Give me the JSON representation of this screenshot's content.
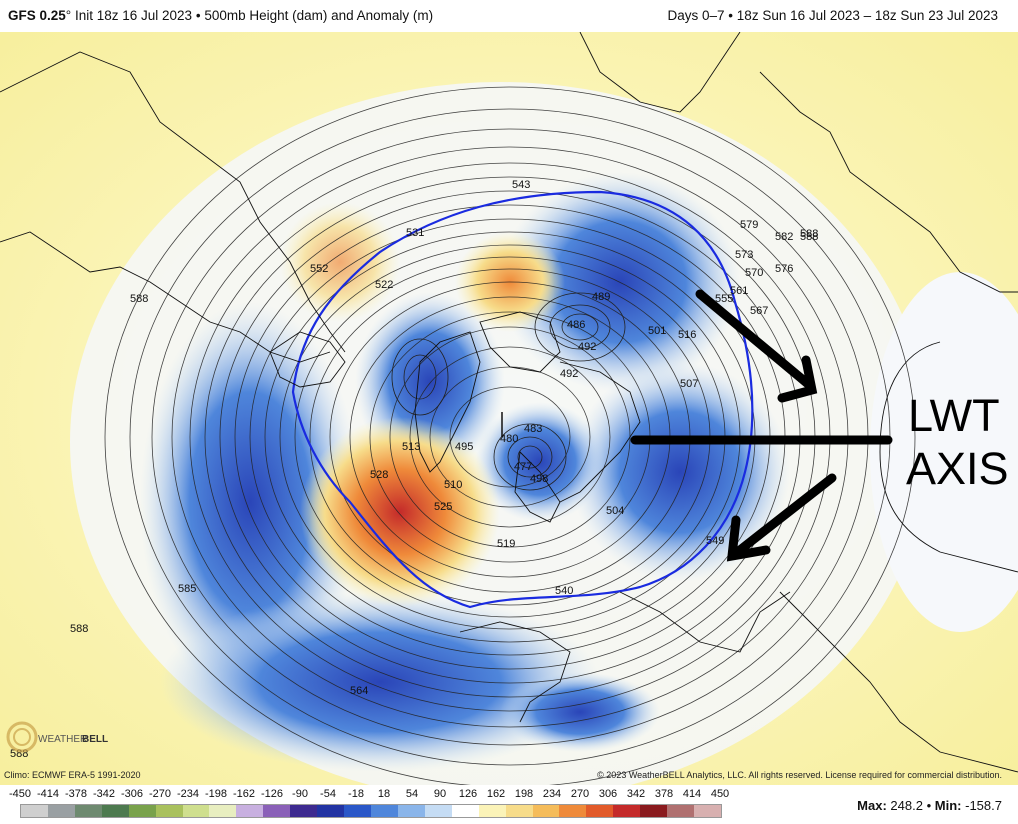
{
  "header": {
    "model": "GFS 0.25",
    "degree": "°",
    "init": "Init 18z 16 Jul 2023",
    "field": "500mb Height (dam) and Anomaly (m)",
    "days": "Days 0–7",
    "valid": "18z Sun 16 Jul 2023 – 18z Sun 23 Jul 2023",
    "separator": "•"
  },
  "footer": {
    "climo": "Climo: ECMWF ERA-5 1991-2020",
    "copyright": "© 2023 WeatherBELL Analytics, LLC. All rights reserved. License required for commercial distribution.",
    "max_label": "Max:",
    "max_value": "248.2",
    "min_label": "Min:",
    "min_value": "-158.7",
    "bullet": "•"
  },
  "logo": {
    "text_1": "WEATHER",
    "text_2": "BELL"
  },
  "colorbar": {
    "ticks": [
      "-450",
      "-414",
      "-378",
      "-342",
      "-306",
      "-270",
      "-234",
      "-198",
      "-162",
      "-126",
      "-90",
      "-54",
      "-18",
      "18",
      "54",
      "90",
      "126",
      "162",
      "198",
      "234",
      "270",
      "306",
      "342",
      "378",
      "414",
      "450"
    ],
    "colors": [
      "#cfcfcf",
      "#9aa0a3",
      "#6e8a70",
      "#4d7a4f",
      "#79a24b",
      "#a9c15d",
      "#cfdf8e",
      "#e8eec0",
      "#c8b0e0",
      "#8a60b8",
      "#3d2a90",
      "#2233a3",
      "#2a57c8",
      "#4f86db",
      "#8ab5ea",
      "#c5dcf4",
      "#ffffff",
      "#fbf3b8",
      "#f7dc8a",
      "#f5bc5a",
      "#ef8a3a",
      "#e25a2a",
      "#c42a2a",
      "#8a1a1e",
      "#b07070",
      "#d8b0b0"
    ]
  },
  "contour_labels": [
    "543",
    "531",
    "552",
    "522",
    "588",
    "579",
    "573",
    "570",
    "576",
    "582",
    "588",
    "567",
    "561",
    "555",
    "489",
    "486",
    "492",
    "501",
    "516",
    "492",
    "507",
    "504",
    "519",
    "513",
    "528",
    "525",
    "510",
    "495",
    "483",
    "480",
    "477",
    "588",
    "585",
    "564",
    "588",
    "540",
    "549",
    "498",
    "588"
  ],
  "annotation": {
    "line1": "LWT",
    "line2": "AXIS"
  },
  "palette": {
    "blue_line": "#1a2be0",
    "land_outline": "#111111",
    "contour": "#222222"
  }
}
